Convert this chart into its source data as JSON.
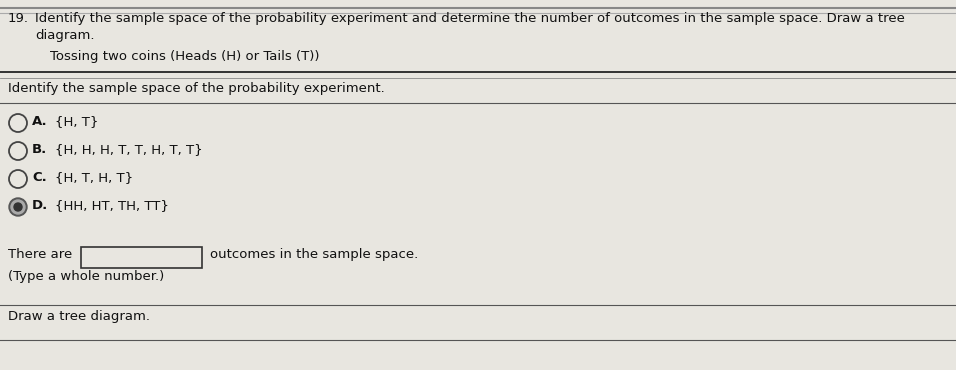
{
  "bg_color": "#e8e6e0",
  "question_number": "19.",
  "question_text": "Identify the sample space of the probability experiment and determine the number of outcomes in the sample space. Draw a tree\ndiagram.",
  "sub_question": "Tossing two coins (Heads (H) or Tails (T))",
  "identify_text": "Identify the sample space of the probability experiment.",
  "options": [
    {
      "label": "A.",
      "text": "{H, T}"
    },
    {
      "label": "B.",
      "text": "{H, H, H, T, T, H, T, T}"
    },
    {
      "label": "C.",
      "text": "{H, T, H, T}"
    },
    {
      "label": "D.",
      "text": "{HH, HT, TH, TT}"
    }
  ],
  "selected_option": "D",
  "there_are_text": "There are",
  "outcomes_text": "outcomes in the sample space.",
  "type_text": "(Type a whole number.)",
  "draw_text": "Draw a tree diagram.",
  "text_color": "#111111",
  "line_color": "#444444"
}
